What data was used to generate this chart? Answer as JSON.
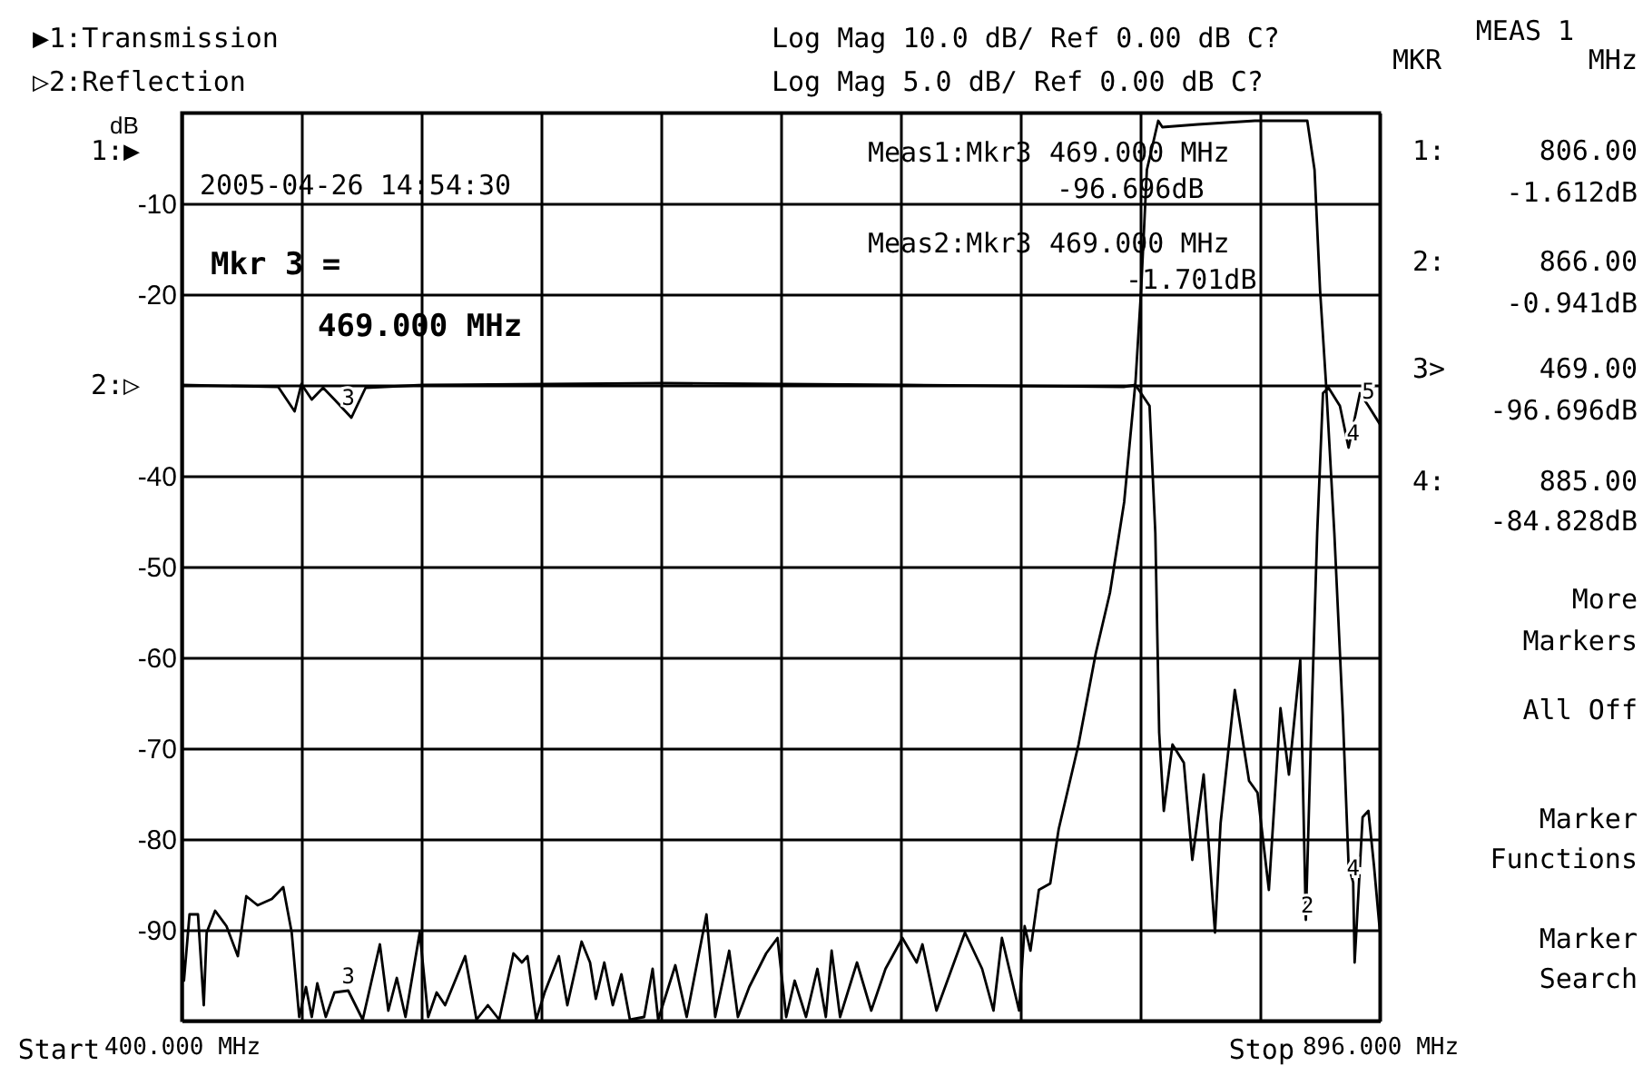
{
  "chart_data": {
    "type": "line",
    "ylabel": "dB",
    "xlim": [
      400,
      896
    ],
    "ylim": [
      -100,
      0
    ],
    "xticks": [
      {
        "value": 400,
        "label": "400.000 MHz"
      },
      {
        "value": 449.6,
        "label": null
      },
      {
        "value": 499.2,
        "label": null
      },
      {
        "value": 548.8,
        "label": null
      },
      {
        "value": 598.4,
        "label": null
      },
      {
        "value": 648,
        "label": null
      },
      {
        "value": 697.6,
        "label": null
      },
      {
        "value": 747.2,
        "label": null
      },
      {
        "value": 796.8,
        "label": null
      },
      {
        "value": 846.4,
        "label": null
      },
      {
        "value": 896,
        "label": "896.000 MHz"
      }
    ],
    "yticks": [
      {
        "value": 0,
        "label": null
      },
      -10,
      -20,
      {
        "value": -30,
        "label": null
      },
      -40,
      -50,
      -60,
      -70,
      -80,
      -90,
      {
        "value": -100,
        "label": null
      }
    ],
    "grid": true,
    "line_style": "solid",
    "marker": "none",
    "series": [
      {
        "color": "#000000",
        "x": [
          400,
          401,
          403.3,
          406.8,
          409.2,
          410.4,
          413.9,
          418.6,
          423.3,
          426.8,
          431.5,
          437.4,
          442.1,
          445.6,
          448.7,
          451.5,
          453.9,
          456.2,
          459.7,
          463.3,
          469,
          475,
          482.1,
          485.6,
          489.1,
          492.7,
          498.6,
          502.1,
          505.6,
          509.1,
          517.4,
          522.1,
          526.8,
          531.5,
          537.4,
          540.9,
          543.2,
          546.8,
          550.3,
          556.2,
          559.7,
          565.6,
          569.1,
          571.5,
          575,
          578.5,
          582.1,
          585.6,
          591.5,
          595,
          597.3,
          604.4,
          609.1,
          617.3,
          620.9,
          626.7,
          630.3,
          635,
          642,
          646.7,
          650.3,
          653.8,
          658.5,
          663.2,
          666.7,
          669.1,
          672.6,
          679.6,
          685.5,
          691.4,
          698.4,
          704.3,
          706.7,
          712.5,
          724.3,
          731.4,
          736.1,
          739.6,
          746.7,
          749,
          751.4,
          754.9,
          759.6,
          763.1,
          771.3,
          778.4,
          784.3,
          790.2,
          794.9,
          797.2,
          799.6,
          804.3,
          806,
          820.7,
          844.3,
          866,
          869,
          871.3,
          873.7,
          877.2,
          880.7,
          883.1,
          885,
          885.6,
          888.9,
          891.3,
          893.6,
          896
        ],
        "values": [
          -89.6,
          -95.6,
          -88.3,
          -88.3,
          -98.3,
          -90.3,
          -87.9,
          -89.6,
          -92.9,
          -86.3,
          -87.3,
          -86.6,
          -85.3,
          -90.3,
          -99.6,
          -96.3,
          -99.6,
          -95.9,
          -99.6,
          -96.9,
          -96.7,
          -99.9,
          -91.6,
          -98.9,
          -95.3,
          -99.6,
          -90.3,
          -99.6,
          -96.9,
          -98.3,
          -92.9,
          -99.9,
          -98.3,
          -99.9,
          -92.6,
          -93.6,
          -92.9,
          -99.9,
          -96.9,
          -92.9,
          -98.3,
          -91.3,
          -93.6,
          -97.6,
          -93.6,
          -98.3,
          -94.9,
          -99.9,
          -99.6,
          -94.3,
          -99.9,
          -93.9,
          -99.6,
          -88.3,
          -99.6,
          -92.3,
          -99.6,
          -96.3,
          -92.6,
          -90.9,
          -99.6,
          -95.6,
          -99.6,
          -94.3,
          -99.6,
          -92.3,
          -99.6,
          -93.6,
          -98.9,
          -94.3,
          -90.9,
          -93.6,
          -91.6,
          -98.9,
          -90.3,
          -94.3,
          -98.9,
          -90.9,
          -98.9,
          -89.6,
          -92.3,
          -85.6,
          -84.9,
          -78.9,
          -69.6,
          -59.6,
          -52.9,
          -42.9,
          -29.6,
          -19.6,
          -6.3,
          -0.9,
          -1.6,
          -1.3,
          -0.9,
          -0.9,
          -6.3,
          -19.6,
          -29.6,
          -46.3,
          -66.3,
          -82.9,
          -84.8,
          -93.6,
          -77.6,
          -76.9,
          -82.9,
          -90
        ]
      },
      {
        "color": "#000000",
        "x": [
          400,
          440,
          446.8,
          449.6,
          453.9,
          458.6,
          463.3,
          470.3,
          476.2,
          500,
          600,
          700,
          790,
          794.9,
          800.7,
          803.1,
          804.7,
          806.6,
          810.2,
          814.9,
          818.4,
          823.1,
          827.8,
          830.1,
          836,
          841.9,
          845.4,
          850.1,
          854.9,
          858.4,
          863.1,
          865.4,
          867.8,
          870.1,
          872.5,
          874.8,
          879.5,
          883.1,
          887.8,
          891.3,
          896
        ],
        "values": [
          -30,
          -30.2,
          -32.9,
          -29.9,
          -31.6,
          -30.3,
          -31.6,
          -33.6,
          -30.3,
          -30,
          -29.8,
          -30,
          -30.2,
          -30,
          -32.3,
          -46.3,
          -68.3,
          -76.9,
          -69.6,
          -71.6,
          -82.3,
          -72.9,
          -90.3,
          -78.3,
          -63.6,
          -73.6,
          -74.9,
          -85.6,
          -65.6,
          -72.9,
          -60.3,
          -88.9,
          -66.3,
          -46.3,
          -30.9,
          -30.3,
          -32.3,
          -36.9,
          -30.9,
          -32.3,
          -34.3
        ]
      }
    ],
    "annotations": [
      "▶1:Transmission",
      "▷2:Reflection",
      "1:▶",
      "2:▷",
      "Log Mag  10.0 dB/ Ref   0.00 dB   C?",
      "Log Mag   5.0 dB/ Ref   0.00 dB   C?",
      "2005-04-26 14:54:30",
      "Mkr 3 =",
      "469.000 MHz",
      "Meas1:Mkr3",
      "469.000 MHz",
      "-96.696dB",
      "Meas2:Mkr3",
      "469.000 MHz",
      "-1.701dB",
      "Start",
      "Stop",
      "MEAS 1",
      "MKR",
      "MHz",
      "1:",
      "806.00",
      "-1.612dB",
      "2:",
      "866.00",
      "-0.941dB",
      "3>",
      "469.00",
      "-96.696dB",
      "4:",
      "885.00",
      "-84.828dB",
      "More",
      "Markers",
      "All Off",
      "Marker",
      "Functions",
      "Marker",
      "Search",
      {
        "text": "3",
        "x": 469,
        "y": -96.7
      },
      {
        "text": "3",
        "x": 469,
        "y": -33
      },
      {
        "text": "2",
        "x": 866,
        "y": -88.9
      },
      {
        "text": "4",
        "x": 885,
        "y": -84.8
      },
      {
        "text": "4",
        "x": 885,
        "y": -36.9
      },
      {
        "text": "5",
        "x": 891.3,
        "y": -32.3
      }
    ]
  }
}
